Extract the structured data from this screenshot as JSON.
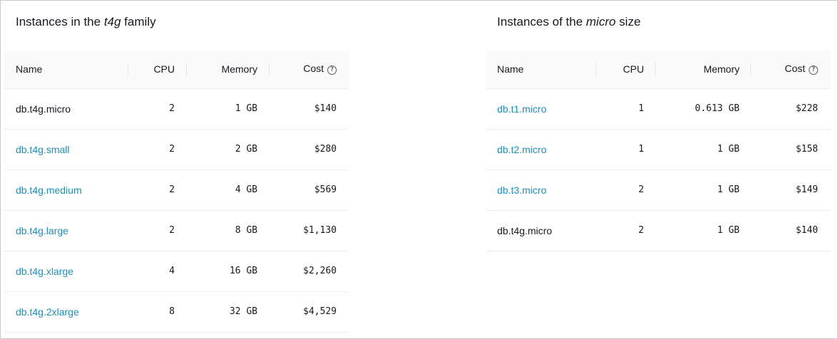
{
  "left": {
    "title_prefix": "Instances in the ",
    "title_em": "t4g",
    "title_suffix": " family",
    "columns": {
      "name": "Name",
      "cpu": "CPU",
      "memory": "Memory",
      "cost": "Cost"
    },
    "rows": [
      {
        "name": "db.t4g.micro",
        "link": false,
        "cpu": "2",
        "memory": "1 GB",
        "cost": "$140"
      },
      {
        "name": "db.t4g.small",
        "link": true,
        "cpu": "2",
        "memory": "2 GB",
        "cost": "$280"
      },
      {
        "name": "db.t4g.medium",
        "link": true,
        "cpu": "2",
        "memory": "4 GB",
        "cost": "$569"
      },
      {
        "name": "db.t4g.large",
        "link": true,
        "cpu": "2",
        "memory": "8 GB",
        "cost": "$1,130"
      },
      {
        "name": "db.t4g.xlarge",
        "link": true,
        "cpu": "4",
        "memory": "16 GB",
        "cost": "$2,260"
      },
      {
        "name": "db.t4g.2xlarge",
        "link": true,
        "cpu": "8",
        "memory": "32 GB",
        "cost": "$4,529"
      }
    ]
  },
  "right": {
    "title_prefix": "Instances of the ",
    "title_em": "micro",
    "title_suffix": " size",
    "columns": {
      "name": "Name",
      "cpu": "CPU",
      "memory": "Memory",
      "cost": "Cost"
    },
    "rows": [
      {
        "name": "db.t1.micro",
        "link": true,
        "cpu": "1",
        "memory": "0.613 GB",
        "cost": "$228"
      },
      {
        "name": "db.t2.micro",
        "link": true,
        "cpu": "1",
        "memory": "1 GB",
        "cost": "$158"
      },
      {
        "name": "db.t3.micro",
        "link": true,
        "cpu": "2",
        "memory": "1 GB",
        "cost": "$149"
      },
      {
        "name": "db.t4g.micro",
        "link": false,
        "cpu": "2",
        "memory": "1 GB",
        "cost": "$140"
      }
    ]
  },
  "icons": {
    "cost_help": "question-circle-icon"
  },
  "colors": {
    "link": "#1b8fc4",
    "header_bg": "#fafafa"
  }
}
